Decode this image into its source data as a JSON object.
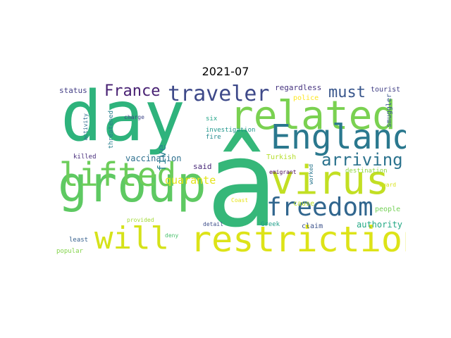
{
  "title": "2021-07",
  "words": [
    {
      "text": "day",
      "color": "#2eb37c",
      "vertical": false
    },
    {
      "text": "â",
      "color": "#35b779",
      "vertical": false
    },
    {
      "text": "group",
      "color": "#5ec962",
      "vertical": false
    },
    {
      "text": "related",
      "color": "#7ad151",
      "vertical": false
    },
    {
      "text": "England",
      "color": "#2a788e",
      "vertical": false
    },
    {
      "text": "virus",
      "color": "#c2df23",
      "vertical": false
    },
    {
      "text": "lifted",
      "color": "#6ccd5a",
      "vertical": false
    },
    {
      "text": "will",
      "color": "#d5e21a",
      "vertical": false
    },
    {
      "text": "restriction",
      "color": "#dde318",
      "vertical": false
    },
    {
      "text": "freedom",
      "color": "#31668e",
      "vertical": false
    },
    {
      "text": "traveler",
      "color": "#3e4989",
      "vertical": false
    },
    {
      "text": "France",
      "color": "#482173",
      "vertical": false
    },
    {
      "text": "must",
      "color": "#39568c",
      "vertical": false
    },
    {
      "text": "arriving",
      "color": "#2c738e",
      "vertical": false
    },
    {
      "text": "quarante",
      "color": "#e5e419",
      "vertical": false
    },
    {
      "text": "five",
      "color": "#26828e",
      "vertical": true
    },
    {
      "text": "vaccination",
      "color": "#2d708e",
      "vertical": false
    },
    {
      "text": "authority",
      "color": "#22a884",
      "vertical": false
    },
    {
      "text": "status",
      "color": "#433e85",
      "vertical": false
    },
    {
      "text": "regardless",
      "color": "#46337f",
      "vertical": false
    },
    {
      "text": "tourist",
      "color": "#424086",
      "vertical": false
    },
    {
      "text": "smuggler",
      "color": "#38588c",
      "vertical": true
    },
    {
      "text": "said",
      "color": "#482878",
      "vertical": false
    },
    {
      "text": "Turkish",
      "color": "#b5de2b",
      "vertical": false
    },
    {
      "text": "police",
      "color": "#fde725",
      "vertical": false
    },
    {
      "text": "cause",
      "color": "#b8de29",
      "vertical": false
    },
    {
      "text": "Greek",
      "color": "#1f9e89",
      "vertical": false
    },
    {
      "text": "claim",
      "color": "#3b528b",
      "vertical": false
    },
    {
      "text": "people",
      "color": "#73d056",
      "vertical": false
    },
    {
      "text": "destination",
      "color": "#90d743",
      "vertical": false
    },
    {
      "text": "Guard",
      "color": "#d8e219",
      "vertical": false
    },
    {
      "text": "Coast",
      "color": "#e7e419",
      "vertical": false
    },
    {
      "text": "emigrant",
      "color": "#440154",
      "vertical": false
    },
    {
      "text": "worked",
      "color": "#2a768e",
      "vertical": true
    },
    {
      "text": "six",
      "color": "#20a386",
      "vertical": false
    },
    {
      "text": "investigation",
      "color": "#1f968b",
      "vertical": false
    },
    {
      "text": "fire",
      "color": "#238a8d",
      "vertical": false
    },
    {
      "text": "charge",
      "color": "#3f4788",
      "vertical": false
    },
    {
      "text": "threatened",
      "color": "#277f8e",
      "vertical": true
    },
    {
      "text": "activity",
      "color": "#2f6c8e",
      "vertical": true
    },
    {
      "text": "killed",
      "color": "#472d7b",
      "vertical": false
    },
    {
      "text": "detail",
      "color": "#3d4d8a",
      "vertical": false
    },
    {
      "text": "deny",
      "color": "#4ac16d",
      "vertical": false
    },
    {
      "text": "provided",
      "color": "#a2da37",
      "vertical": false
    },
    {
      "text": "least",
      "color": "#355f8d",
      "vertical": false
    },
    {
      "text": "popular",
      "color": "#84d44b",
      "vertical": false
    }
  ]
}
